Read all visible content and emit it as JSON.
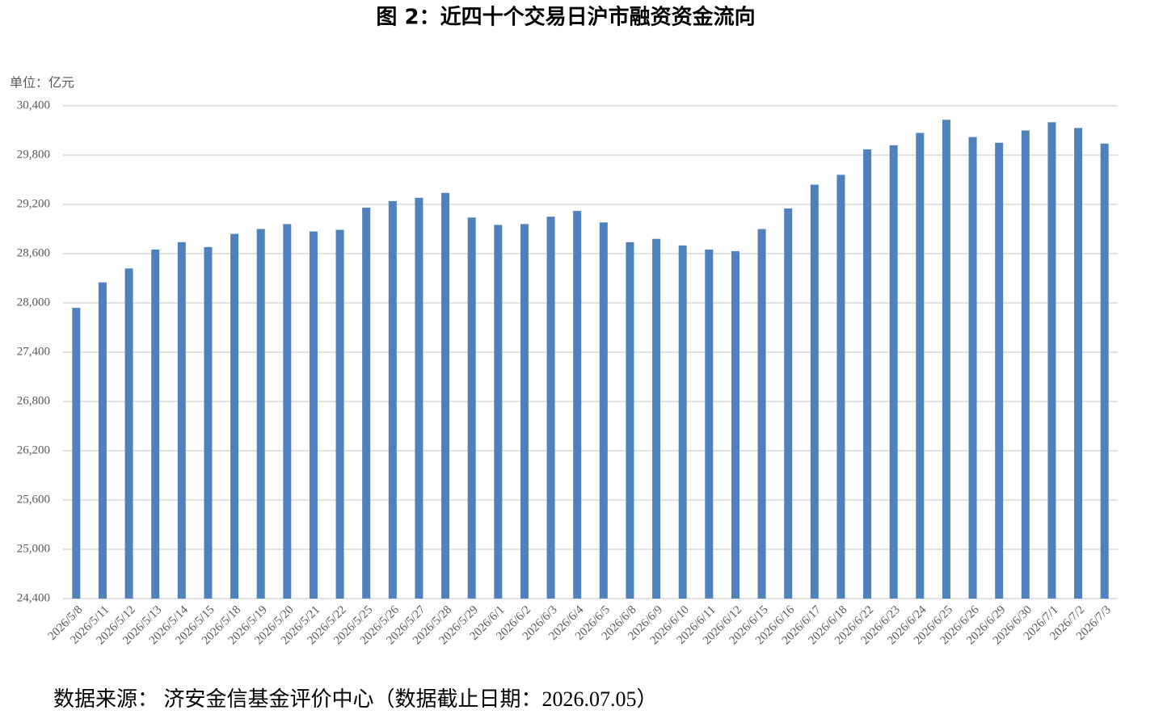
{
  "chart_data": {
    "type": "bar",
    "title": "图 2：近四十个交易日沪市融资资金流向",
    "unit": "单位：亿元",
    "source": "数据来源：  济安金信基金评价中心（数据截止日期：2026.07.05）",
    "color": "#4f81bd",
    "grid": true,
    "categories": [
      "2026/5/8",
      "2026/5/11",
      "2026/5/12",
      "2026/5/13",
      "2026/5/14",
      "2026/5/15",
      "2026/5/18",
      "2026/5/19",
      "2026/5/20",
      "2026/5/21",
      "2026/5/22",
      "2026/5/25",
      "2026/5/26",
      "2026/5/27",
      "2026/5/28",
      "2026/5/29",
      "2026/6/1",
      "2026/6/2",
      "2026/6/3",
      "2026/6/4",
      "2026/6/5",
      "2026/6/8",
      "2026/6/9",
      "2026/6/10",
      "2026/6/11",
      "2026/6/12",
      "2026/6/15",
      "2026/6/16",
      "2026/6/17",
      "2026/6/18",
      "2026/6/22",
      "2026/6/23",
      "2026/6/24",
      "2026/6/25",
      "2026/6/26",
      "2026/6/29",
      "2026/6/30",
      "2026/7/1",
      "2026/7/2",
      "2026/7/3"
    ],
    "values": [
      27940,
      28250,
      28420,
      28650,
      28740,
      28680,
      28840,
      28900,
      28960,
      28870,
      28890,
      29160,
      29240,
      29280,
      29340,
      29040,
      28950,
      28960,
      29050,
      29120,
      28980,
      28740,
      28780,
      28700,
      28650,
      28630,
      28900,
      29150,
      29440,
      29560,
      29870,
      29920,
      30070,
      30230,
      30020,
      29950,
      30100,
      30200,
      30130,
      29940
    ],
    "ylim": [
      24400,
      30400
    ],
    "yticks": [
      {
        "value": 24400,
        "label": "24,400"
      },
      {
        "value": 25000,
        "label": "25,000"
      },
      {
        "value": 25600,
        "label": "25,600"
      },
      {
        "value": 26200,
        "label": "26,200"
      },
      {
        "value": 26800,
        "label": "26,800"
      },
      {
        "value": 27400,
        "label": "27,400"
      },
      {
        "value": 28000,
        "label": "28,000"
      },
      {
        "value": 28600,
        "label": "28,600"
      },
      {
        "value": 29200,
        "label": "29,200"
      },
      {
        "value": 29800,
        "label": "29,800"
      },
      {
        "value": 30400,
        "label": "30,400"
      }
    ]
  }
}
